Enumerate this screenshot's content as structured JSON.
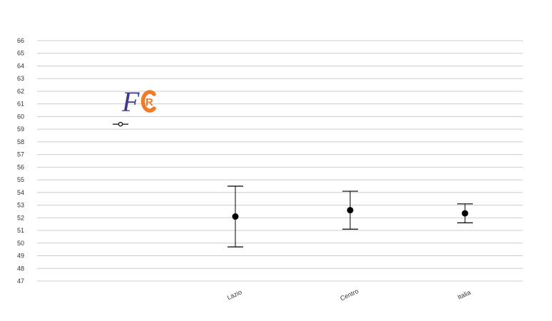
{
  "logo": {
    "letter_f": "F",
    "letter_r": "R",
    "color_f": "#3f3a8c",
    "color_c": "#f07c2a"
  },
  "chart_data": {
    "type": "scatter",
    "subtype": "error-bar",
    "title": "",
    "xlabel": "",
    "ylabel": "",
    "ylim": [
      47,
      66
    ],
    "yticks": [
      47,
      48,
      49,
      50,
      51,
      52,
      53,
      54,
      55,
      56,
      57,
      58,
      59,
      60,
      61,
      62,
      63,
      64,
      65,
      66
    ],
    "grid": true,
    "legend": "none",
    "categories": [
      "",
      "Lazio",
      "Centro",
      "Italia"
    ],
    "series": [
      {
        "values": [
          59.4,
          52.1,
          52.6,
          52.35
        ],
        "lower": [
          59.4,
          49.7,
          51.1,
          51.6
        ],
        "upper": [
          59.4,
          54.5,
          54.1,
          53.1
        ]
      }
    ],
    "colors": {
      "grid": "#cccccc",
      "marker": "#000000",
      "first_marker": "#ffffff"
    }
  }
}
